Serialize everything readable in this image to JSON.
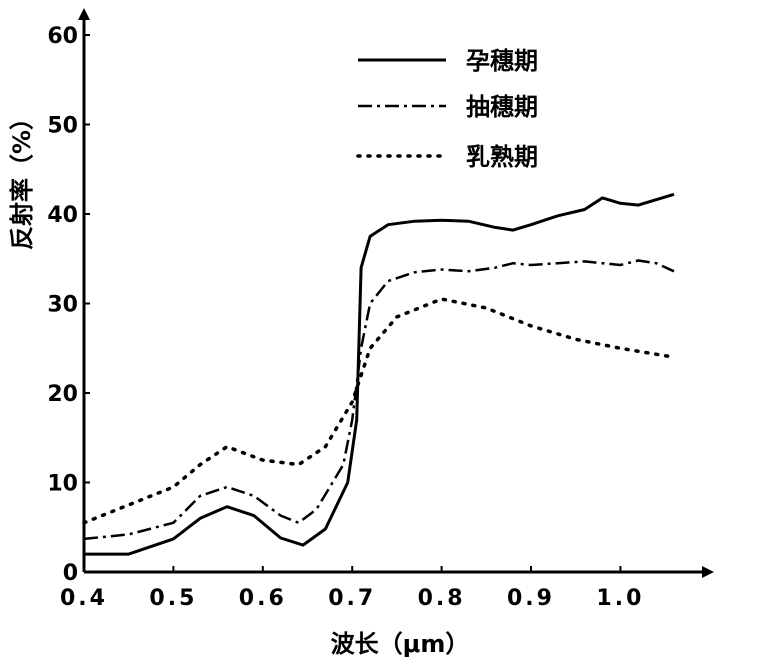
{
  "chart_data": {
    "type": "line",
    "xlabel": "波长（μm）",
    "ylabel": "反射率（%）",
    "xlim": [
      0.4,
      1.08
    ],
    "ylim": [
      0,
      60
    ],
    "x_ticks": [
      "0.4",
      "0.5",
      "0.6",
      "0.7",
      "0.8",
      "0.9",
      "1.0"
    ],
    "y_ticks": [
      "0",
      "10",
      "20",
      "30",
      "40",
      "50",
      "60"
    ],
    "legend_position": "top-right",
    "grid": false,
    "series": [
      {
        "name": "孕穗期",
        "line_style": "solid",
        "color": "#000000",
        "x": [
          0.4,
          0.45,
          0.5,
          0.53,
          0.56,
          0.59,
          0.62,
          0.645,
          0.67,
          0.695,
          0.705,
          0.71,
          0.72,
          0.74,
          0.77,
          0.8,
          0.83,
          0.86,
          0.88,
          0.9,
          0.93,
          0.96,
          0.98,
          1.0,
          1.02,
          1.04,
          1.06
        ],
        "y": [
          2,
          2,
          3.7,
          6,
          7.3,
          6.3,
          3.8,
          3,
          4.8,
          10,
          17,
          34,
          37.5,
          38.8,
          39.2,
          39.3,
          39.2,
          38.5,
          38.2,
          38.8,
          39.8,
          40.5,
          41.8,
          41.2,
          41.0,
          41.6,
          42.2
        ]
      },
      {
        "name": "抽穗期",
        "line_style": "dash-dot",
        "color": "#000000",
        "x": [
          0.4,
          0.45,
          0.5,
          0.53,
          0.56,
          0.59,
          0.62,
          0.64,
          0.66,
          0.69,
          0.7,
          0.71,
          0.72,
          0.74,
          0.77,
          0.8,
          0.83,
          0.86,
          0.88,
          0.9,
          0.93,
          0.96,
          0.98,
          1.0,
          1.02,
          1.04,
          1.06
        ],
        "y": [
          3.7,
          4.2,
          5.5,
          8.5,
          9.5,
          8.5,
          6.3,
          5.5,
          7,
          12,
          17,
          25,
          30,
          32.5,
          33.5,
          33.8,
          33.6,
          34,
          34.5,
          34.3,
          34.5,
          34.7,
          34.5,
          34.3,
          34.8,
          34.5,
          33.6
        ]
      },
      {
        "name": "乳熟期",
        "line_style": "dotted",
        "color": "#000000",
        "x": [
          0.4,
          0.45,
          0.5,
          0.53,
          0.56,
          0.6,
          0.64,
          0.67,
          0.7,
          0.72,
          0.75,
          0.8,
          0.85,
          0.9,
          0.95,
          1.0,
          1.06
        ],
        "y": [
          5.5,
          7.5,
          9.5,
          12,
          14,
          12.5,
          12,
          14,
          19,
          25,
          28.5,
          30.5,
          29.5,
          27.5,
          26,
          25,
          24
        ]
      }
    ]
  }
}
